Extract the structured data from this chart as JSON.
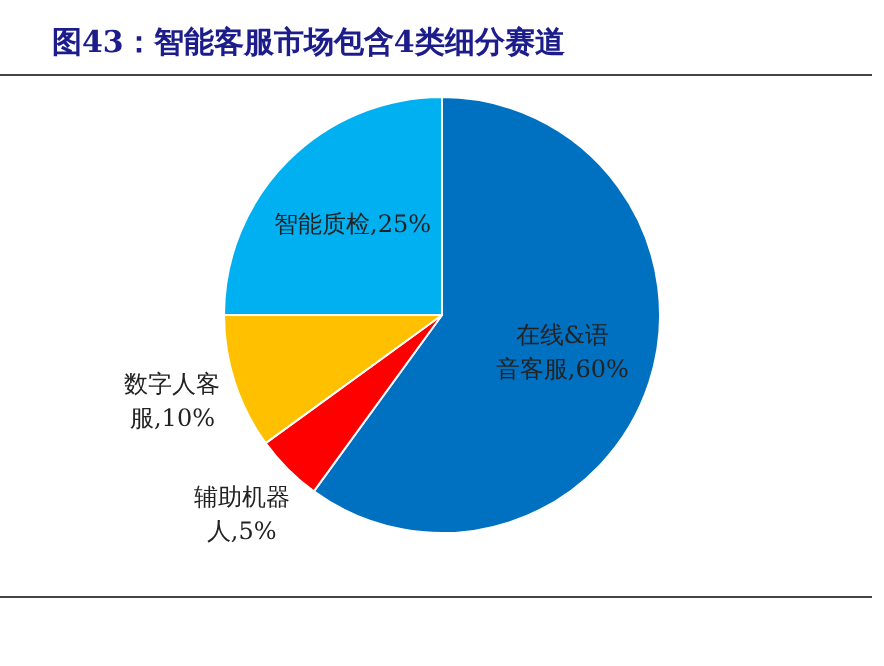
{
  "chart_data": {
    "type": "pie",
    "title": "图43：智能客服市场包含4类细分赛道",
    "categories": [
      "在线&语音客服",
      "辅助机器人",
      "数字人客服",
      "智能质检"
    ],
    "values": [
      60,
      5,
      10,
      25
    ],
    "value_labels": [
      "60%",
      "5%",
      "10%",
      "25%"
    ],
    "colors": [
      "#0070c0",
      "#ff0000",
      "#ffc000",
      "#00b0f0"
    ],
    "legend": false
  }
}
